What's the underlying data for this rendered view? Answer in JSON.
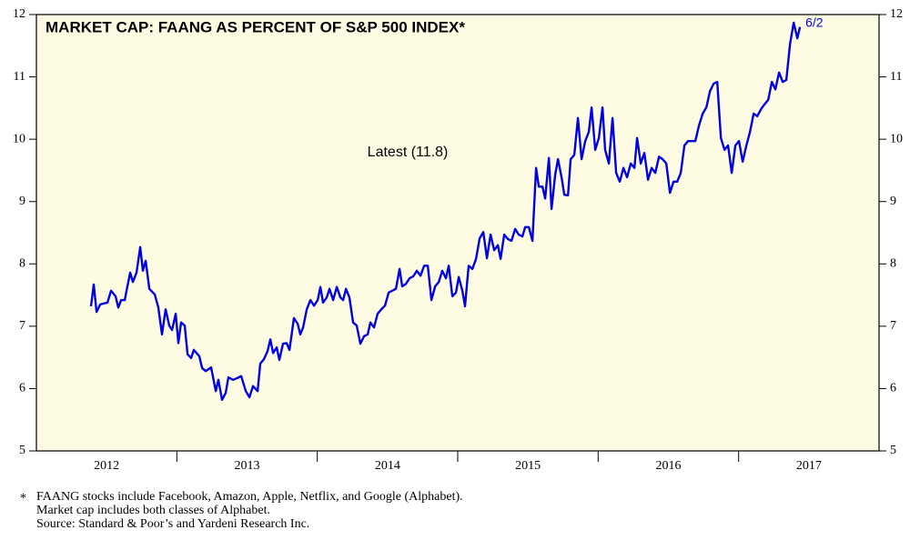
{
  "chart_data": {
    "type": "line",
    "title": "MARKET CAP: FAANG AS PERCENT OF S&P 500 INDEX*",
    "annotation": "Latest (11.8)",
    "end_label": "6/2",
    "footnotes": [
      "*",
      "FAANG stocks include Facebook, Amazon, Apple, Netflix, and Google (Alphabet).",
      "Market cap includes both classes of Alphabet.",
      "Source: Standard & Poor’s and Yardeni Research Inc."
    ],
    "background": "#fdfbe1",
    "xlim": [
      2012,
      2018
    ],
    "xticks": [
      {
        "value": 2012.5,
        "label": "2012"
      },
      {
        "value": 2013.5,
        "label": "2013"
      },
      {
        "value": 2014.5,
        "label": "2014"
      },
      {
        "value": 2015.5,
        "label": "2015"
      },
      {
        "value": 2016.5,
        "label": "2016"
      },
      {
        "value": 2017.5,
        "label": "2017"
      }
    ],
    "x_boundaries": [
      2013,
      2014,
      2015,
      2016,
      2017
    ],
    "ylim": [
      5,
      12
    ],
    "yticks": [
      5,
      6,
      7,
      8,
      9,
      10,
      11,
      12
    ],
    "series": [
      {
        "name": "FAANG",
        "color": "#0000e0",
        "x": [
          2012.389,
          2012.408,
          2012.428,
          2012.454,
          2012.506,
          2012.531,
          2012.564,
          2012.583,
          2012.603,
          2012.629,
          2012.648,
          2012.668,
          2012.687,
          2012.713,
          2012.739,
          2012.758,
          2012.778,
          2012.804,
          2012.843,
          2012.868,
          2012.894,
          2012.92,
          2012.946,
          2012.966,
          2012.992,
          2013.011,
          2013.03,
          2013.056,
          2013.076,
          2013.102,
          2013.121,
          2013.16,
          2013.18,
          2013.205,
          2013.244,
          2013.277,
          2013.296,
          2013.322,
          2013.348,
          2013.367,
          2013.4,
          2013.432,
          2013.458,
          2013.491,
          2013.517,
          2013.542,
          2013.575,
          2013.594,
          2013.62,
          2013.646,
          2013.666,
          2013.685,
          2013.711,
          2013.73,
          2013.756,
          2013.782,
          2013.802,
          2013.834,
          2013.86,
          2013.879,
          2013.899,
          2013.925,
          2013.951,
          2013.977,
          2014.003,
          2014.022,
          2014.041,
          2014.067,
          2014.087,
          2014.113,
          2014.139,
          2014.165,
          2014.184,
          2014.204,
          2014.229,
          2014.255,
          2014.281,
          2014.307,
          2014.333,
          2014.359,
          2014.378,
          2014.404,
          2014.43,
          2014.456,
          2014.482,
          2014.508,
          2014.534,
          2014.56,
          2014.586,
          2014.605,
          2014.631,
          2014.657,
          2014.683,
          2014.709,
          2014.735,
          2014.761,
          2014.787,
          2014.813,
          2014.839,
          2014.865,
          2014.89,
          2014.916,
          2014.936,
          2014.962,
          2014.988,
          2015.007,
          2015.033,
          2015.052,
          2015.078,
          2015.104,
          2015.13,
          2015.156,
          2015.182,
          2015.208,
          2015.234,
          2015.26,
          2015.286,
          2015.305,
          2015.331,
          2015.357,
          2015.383,
          2015.409,
          2015.435,
          2015.461,
          2015.48,
          2015.506,
          2015.532,
          2015.558,
          2015.577,
          2015.603,
          2015.623,
          2015.649,
          2015.668,
          2015.694,
          2015.714,
          2015.739,
          2015.759,
          2015.785,
          2015.804,
          2015.83,
          2015.856,
          2015.882,
          2015.908,
          2015.934,
          2015.953,
          2015.979,
          2016.005,
          2016.031,
          2016.05,
          2016.076,
          2016.102,
          2016.128,
          2016.154,
          2016.18,
          2016.206,
          2016.232,
          2016.258,
          2016.277,
          2016.303,
          2016.329,
          2016.355,
          2016.381,
          2016.407,
          2016.433,
          2016.459,
          2016.485,
          2016.511,
          2016.537,
          2016.563,
          2016.588,
          2016.614,
          2016.64,
          2016.666,
          2016.692,
          2016.718,
          2016.744,
          2016.77,
          2016.796,
          2016.822,
          2016.848,
          2016.874,
          2016.9,
          2016.925,
          2016.951,
          2016.977,
          2017.003,
          2017.029,
          2017.055,
          2017.081,
          2017.107,
          2017.133,
          2017.159,
          2017.185,
          2017.211,
          2017.237,
          2017.262,
          2017.288,
          2017.314,
          2017.34,
          2017.366,
          2017.392,
          2017.418,
          2017.437
        ],
        "values": [
          7.32,
          7.67,
          7.23,
          7.35,
          7.38,
          7.57,
          7.48,
          7.3,
          7.42,
          7.42,
          7.64,
          7.86,
          7.71,
          7.86,
          8.27,
          7.89,
          8.05,
          7.6,
          7.51,
          7.3,
          6.87,
          7.27,
          7.01,
          6.94,
          7.2,
          6.73,
          7.06,
          7.01,
          6.55,
          6.49,
          6.62,
          6.52,
          6.33,
          6.28,
          6.34,
          5.96,
          6.14,
          5.82,
          5.93,
          6.18,
          6.14,
          6.17,
          6.2,
          5.96,
          5.86,
          6.04,
          5.96,
          6.4,
          6.47,
          6.6,
          6.79,
          6.57,
          6.66,
          6.46,
          6.72,
          6.73,
          6.62,
          7.13,
          7.04,
          6.87,
          6.98,
          7.27,
          7.42,
          7.33,
          7.42,
          7.63,
          7.38,
          7.46,
          7.6,
          7.42,
          7.63,
          7.46,
          7.42,
          7.6,
          7.46,
          7.06,
          7.01,
          6.72,
          6.84,
          6.87,
          7.06,
          6.98,
          7.2,
          7.27,
          7.33,
          7.54,
          7.57,
          7.6,
          7.92,
          7.64,
          7.68,
          7.77,
          7.8,
          7.89,
          7.81,
          7.97,
          7.97,
          7.42,
          7.64,
          7.71,
          7.89,
          7.77,
          7.97,
          7.48,
          7.54,
          7.79,
          7.57,
          7.32,
          7.97,
          7.92,
          8.08,
          8.41,
          8.51,
          8.09,
          8.47,
          8.22,
          8.3,
          8.08,
          8.47,
          8.4,
          8.37,
          8.56,
          8.47,
          8.44,
          8.59,
          8.59,
          8.37,
          9.54,
          9.24,
          9.24,
          9.05,
          9.7,
          8.88,
          9.43,
          9.68,
          9.39,
          9.11,
          9.1,
          9.68,
          9.75,
          10.34,
          9.68,
          9.97,
          10.12,
          10.51,
          9.83,
          10.02,
          10.51,
          9.83,
          9.61,
          10.34,
          9.46,
          9.32,
          9.54,
          9.39,
          9.61,
          9.54,
          10.02,
          9.61,
          9.78,
          9.35,
          9.54,
          9.46,
          9.72,
          9.68,
          9.61,
          9.14,
          9.32,
          9.32,
          9.46,
          9.9,
          9.97,
          9.97,
          9.97,
          10.22,
          10.41,
          10.51,
          10.77,
          10.89,
          10.92,
          10.02,
          9.83,
          9.9,
          9.46,
          9.9,
          9.97,
          9.64,
          9.9,
          10.12,
          10.41,
          10.37,
          10.48,
          10.56,
          10.63,
          10.92,
          10.8,
          11.07,
          10.92,
          10.95,
          11.53,
          11.87,
          11.62,
          11.8
        ]
      }
    ]
  }
}
